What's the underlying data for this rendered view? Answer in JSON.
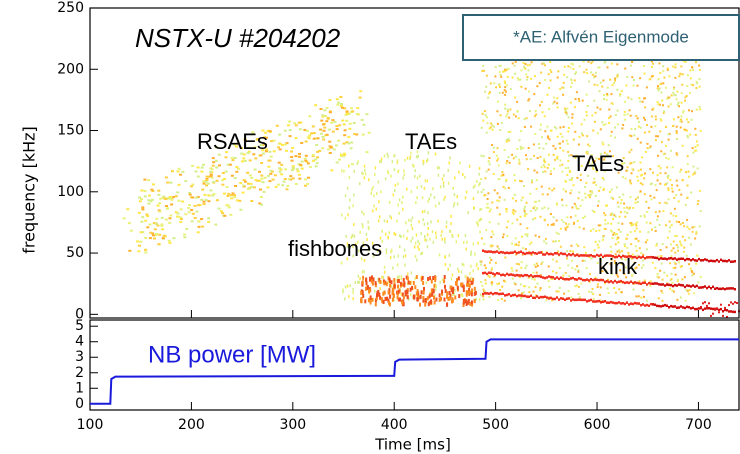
{
  "chart_data": [
    {
      "type": "spectrogram",
      "title": "NSTX-U #204202",
      "note": "*AE: Alfvén Eigenmode",
      "y_label": "frequency  [kHz]",
      "annotations": [
        "RSAEs",
        "TAEs",
        "TAEs",
        "fishbones",
        "kink"
      ],
      "xlim": [
        100,
        740
      ],
      "ylim": [
        -3,
        250
      ],
      "yticks": [
        0,
        50,
        100,
        150,
        200,
        250
      ]
    },
    {
      "type": "line",
      "label": "NB power [MW]",
      "x_label": "Time [ms]",
      "color": "#1a1adc",
      "x": [
        100,
        120,
        121,
        125,
        400,
        401,
        405,
        490,
        491,
        495,
        740
      ],
      "values": [
        0,
        0,
        1.6,
        1.75,
        1.8,
        2.7,
        2.85,
        2.9,
        4.0,
        4.15,
        4.15
      ],
      "xlim": [
        100,
        740
      ],
      "ylim": [
        -0.4,
        5.4
      ],
      "xticks": [
        100,
        200,
        300,
        400,
        500,
        600,
        700
      ],
      "yticks": [
        0,
        1,
        2,
        3,
        4,
        5
      ]
    }
  ]
}
